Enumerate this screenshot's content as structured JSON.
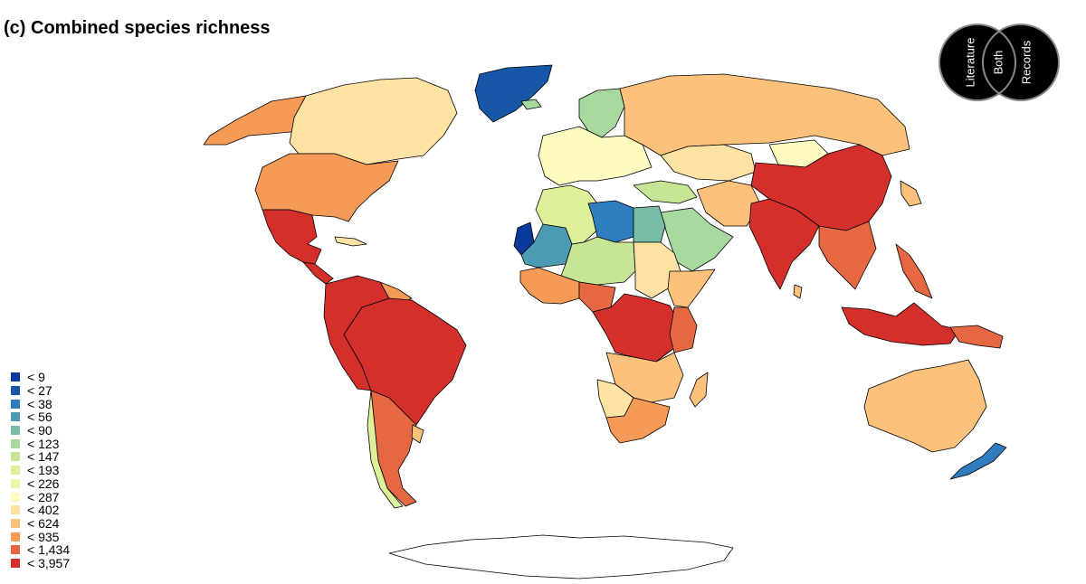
{
  "title": "(c) Combined species richness",
  "legend": {
    "items": [
      {
        "label": "< 9",
        "color": "#08399b"
      },
      {
        "label": "< 27",
        "color": "#1757a8"
      },
      {
        "label": "< 38",
        "color": "#2f7dbf"
      },
      {
        "label": "< 56",
        "color": "#4c9bb5"
      },
      {
        "label": "< 90",
        "color": "#79bda8"
      },
      {
        "label": "< 123",
        "color": "#a7d89e"
      },
      {
        "label": "< 147",
        "color": "#c6e595"
      },
      {
        "label": "< 193",
        "color": "#dff09a"
      },
      {
        "label": "< 226",
        "color": "#eef7a8"
      },
      {
        "label": "< 287",
        "color": "#fdfbbf"
      },
      {
        "label": "< 402",
        "color": "#fde3a3"
      },
      {
        "label": "< 624",
        "color": "#fcc27c"
      },
      {
        "label": "< 935",
        "color": "#f69a57"
      },
      {
        "label": "< 1,434",
        "color": "#e56843"
      },
      {
        "label": "< 3,957",
        "color": "#d42f2b"
      }
    ]
  },
  "venn": {
    "labels": [
      "Literature",
      "Both",
      "Records"
    ]
  },
  "regions": [
    {
      "name": "alaska",
      "color": "#f69a57"
    },
    {
      "name": "canada",
      "color": "#fde3a3"
    },
    {
      "name": "usa",
      "color": "#f69a57"
    },
    {
      "name": "mexico",
      "color": "#d42f2b"
    },
    {
      "name": "central-america",
      "color": "#d42f2b"
    },
    {
      "name": "caribbean",
      "color": "#fde3a3"
    },
    {
      "name": "greenland",
      "color": "#1757a8"
    },
    {
      "name": "northern-south-america",
      "color": "#d42f2b"
    },
    {
      "name": "guianas",
      "color": "#f69a57"
    },
    {
      "name": "brazil",
      "color": "#d42f2b"
    },
    {
      "name": "southern-cone",
      "color": "#e56843"
    },
    {
      "name": "chile",
      "color": "#dff09a"
    },
    {
      "name": "uruguay",
      "color": "#fcc27c"
    },
    {
      "name": "scandinavia",
      "color": "#a7d89e"
    },
    {
      "name": "europe",
      "color": "#fdfbbf"
    },
    {
      "name": "russia",
      "color": "#fcc27c"
    },
    {
      "name": "kazakhstan",
      "color": "#fde3a3"
    },
    {
      "name": "mongolia",
      "color": "#fdfbbf"
    },
    {
      "name": "china",
      "color": "#d42f2b"
    },
    {
      "name": "india",
      "color": "#d42f2b"
    },
    {
      "name": "southeast-asia",
      "color": "#e56843"
    },
    {
      "name": "middle-east",
      "color": "#c6e595"
    },
    {
      "name": "arabia",
      "color": "#a7d89e"
    },
    {
      "name": "iran",
      "color": "#fcc27c"
    },
    {
      "name": "western-sahara",
      "color": "#08399b"
    },
    {
      "name": "mauritania",
      "color": "#4c9bb5"
    },
    {
      "name": "algeria",
      "color": "#dff09a"
    },
    {
      "name": "libya",
      "color": "#2f7dbf"
    },
    {
      "name": "egypt",
      "color": "#79bda8"
    },
    {
      "name": "sahel",
      "color": "#c6e595"
    },
    {
      "name": "sudan",
      "color": "#fde3a3"
    },
    {
      "name": "west-africa",
      "color": "#f69a57"
    },
    {
      "name": "nigeria",
      "color": "#e56843"
    },
    {
      "name": "horn-of-africa",
      "color": "#fcc27c"
    },
    {
      "name": "central-africa",
      "color": "#d42f2b"
    },
    {
      "name": "east-africa",
      "color": "#e56843"
    },
    {
      "name": "southern-africa",
      "color": "#fcc27c"
    },
    {
      "name": "namibia",
      "color": "#fde3a3"
    },
    {
      "name": "south-africa",
      "color": "#f69a57"
    },
    {
      "name": "madagascar",
      "color": "#fcc27c"
    },
    {
      "name": "indonesia",
      "color": "#d42f2b"
    },
    {
      "name": "philippines",
      "color": "#e56843"
    },
    {
      "name": "japan",
      "color": "#fcc27c"
    },
    {
      "name": "new-guinea",
      "color": "#e56843"
    },
    {
      "name": "australia",
      "color": "#fcc27c"
    },
    {
      "name": "new-zealand",
      "color": "#2f7dbf"
    },
    {
      "name": "sri-lanka",
      "color": "#fcc27c"
    },
    {
      "name": "iceland",
      "color": "#a7d89e"
    },
    {
      "name": "antarctica",
      "color": "#ffffff"
    }
  ]
}
